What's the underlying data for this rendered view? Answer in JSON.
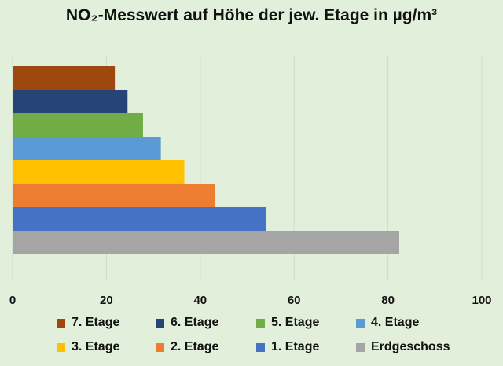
{
  "chart_data": {
    "type": "bar",
    "orientation": "horizontal",
    "title": "NO₂-Messwert auf Höhe der jew. Etage in µg/m³",
    "xlabel": "",
    "ylabel": "",
    "xlim": [
      0,
      100
    ],
    "xticks": [
      "0",
      "20",
      "40",
      "60",
      "80",
      "100"
    ],
    "grid": "vertical",
    "legend_position": "bottom",
    "background": "#e2efda",
    "series": [
      {
        "name": "7. Etage",
        "value": 21.8,
        "color": "#9e480e"
      },
      {
        "name": "6. Etage",
        "value": 24.5,
        "color": "#264478"
      },
      {
        "name": "5. Etage",
        "value": 27.8,
        "color": "#70ad47"
      },
      {
        "name": "4. Etage",
        "value": 31.6,
        "color": "#5b9bd5"
      },
      {
        "name": "3. Etage",
        "value": 36.6,
        "color": "#ffc000"
      },
      {
        "name": "2. Etage",
        "value": 43.2,
        "color": "#ed7d31"
      },
      {
        "name": "1. Etage",
        "value": 54.0,
        "color": "#4472c4"
      },
      {
        "name": "Erdgeschoss",
        "value": 82.4,
        "color": "#a5a5a5"
      }
    ]
  }
}
